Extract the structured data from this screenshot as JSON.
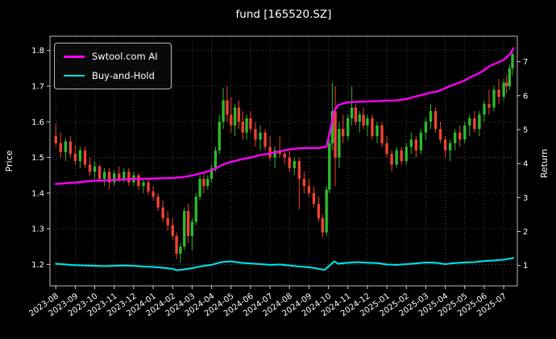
{
  "window": {
    "background": "#000000"
  },
  "chart_data": {
    "type": "candlestick_with_lines",
    "title": "fund [165520.SZ]",
    "legend_position": "upper-left",
    "grid": {
      "style": "dotted",
      "color": "#5a5a5a"
    },
    "left_axis": {
      "label": "Price",
      "ticks": [
        1.2,
        1.3,
        1.4,
        1.5,
        1.6,
        1.7,
        1.8
      ],
      "range": [
        1.14,
        1.84
      ]
    },
    "right_axis": {
      "label": "Return",
      "ticks": [
        1,
        2,
        3,
        4,
        5,
        6,
        7
      ],
      "range": [
        0.4,
        7.75
      ]
    },
    "x_axis": {
      "unit": "months since 2023-08",
      "range": [
        -0.3,
        23.7
      ],
      "tick_labels": [
        "2023-08",
        "2023-09",
        "2023-10",
        "2023-11",
        "2023-12",
        "2024-01",
        "2024-02",
        "2024-03",
        "2024-04",
        "2024-05",
        "2024-06",
        "2024-07",
        "2024-08",
        "2024-09",
        "2024-10",
        "2024-11",
        "2024-12",
        "2025-01",
        "2025-02",
        "2025-03",
        "2025-04",
        "2025-05",
        "2025-06",
        "2025-07"
      ]
    },
    "candles": {
      "up_color": "#2db92d",
      "down_color": "#ef4430",
      "ohlc": [
        [
          0.0,
          1.56,
          1.595,
          1.53,
          1.54
        ],
        [
          0.25,
          1.54,
          1.57,
          1.5,
          1.515
        ],
        [
          0.5,
          1.515,
          1.555,
          1.49,
          1.545
        ],
        [
          0.75,
          1.545,
          1.56,
          1.5,
          1.51
        ],
        [
          1.0,
          1.51,
          1.535,
          1.48,
          1.49
        ],
        [
          1.25,
          1.49,
          1.53,
          1.47,
          1.52
        ],
        [
          1.5,
          1.52,
          1.53,
          1.47,
          1.48
        ],
        [
          1.75,
          1.48,
          1.5,
          1.45,
          1.46
        ],
        [
          2.0,
          1.46,
          1.49,
          1.44,
          1.475
        ],
        [
          2.25,
          1.475,
          1.48,
          1.43,
          1.44
        ],
        [
          2.5,
          1.44,
          1.47,
          1.42,
          1.46
        ],
        [
          2.75,
          1.46,
          1.47,
          1.41,
          1.43
        ],
        [
          3.0,
          1.43,
          1.465,
          1.42,
          1.455
        ],
        [
          3.25,
          1.455,
          1.475,
          1.43,
          1.44
        ],
        [
          3.5,
          1.44,
          1.47,
          1.43,
          1.46
        ],
        [
          3.75,
          1.46,
          1.47,
          1.42,
          1.43
        ],
        [
          4.0,
          1.43,
          1.46,
          1.42,
          1.45
        ],
        [
          4.25,
          1.45,
          1.455,
          1.41,
          1.42
        ],
        [
          4.5,
          1.42,
          1.44,
          1.4,
          1.43
        ],
        [
          4.75,
          1.43,
          1.44,
          1.395,
          1.405
        ],
        [
          5.0,
          1.405,
          1.42,
          1.38,
          1.39
        ],
        [
          5.25,
          1.39,
          1.4,
          1.35,
          1.36
        ],
        [
          5.5,
          1.36,
          1.38,
          1.32,
          1.33
        ],
        [
          5.75,
          1.33,
          1.35,
          1.295,
          1.31
        ],
        [
          6.0,
          1.31,
          1.33,
          1.27,
          1.28
        ],
        [
          6.2,
          1.28,
          1.29,
          1.215,
          1.23
        ],
        [
          6.4,
          1.23,
          1.26,
          1.205,
          1.25
        ],
        [
          6.6,
          1.25,
          1.36,
          1.24,
          1.35
        ],
        [
          6.8,
          1.35,
          1.37,
          1.26,
          1.28
        ],
        [
          7.0,
          1.28,
          1.33,
          1.24,
          1.32
        ],
        [
          7.2,
          1.32,
          1.4,
          1.31,
          1.39
        ],
        [
          7.4,
          1.39,
          1.45,
          1.38,
          1.44
        ],
        [
          7.6,
          1.44,
          1.46,
          1.4,
          1.42
        ],
        [
          7.8,
          1.42,
          1.45,
          1.41,
          1.44
        ],
        [
          8.0,
          1.44,
          1.48,
          1.43,
          1.47
        ],
        [
          8.2,
          1.47,
          1.53,
          1.46,
          1.52
        ],
        [
          8.4,
          1.52,
          1.62,
          1.51,
          1.6
        ],
        [
          8.6,
          1.6,
          1.695,
          1.58,
          1.66
        ],
        [
          8.8,
          1.66,
          1.7,
          1.6,
          1.62
        ],
        [
          9.0,
          1.62,
          1.67,
          1.57,
          1.59
        ],
        [
          9.2,
          1.59,
          1.65,
          1.56,
          1.64
        ],
        [
          9.4,
          1.64,
          1.66,
          1.58,
          1.6
        ],
        [
          9.6,
          1.6,
          1.63,
          1.55,
          1.57
        ],
        [
          9.8,
          1.57,
          1.62,
          1.55,
          1.61
        ],
        [
          10.0,
          1.61,
          1.63,
          1.57,
          1.58
        ],
        [
          10.25,
          1.58,
          1.6,
          1.53,
          1.55
        ],
        [
          10.5,
          1.55,
          1.59,
          1.52,
          1.57
        ],
        [
          10.75,
          1.57,
          1.58,
          1.52,
          1.53
        ],
        [
          11.0,
          1.53,
          1.56,
          1.49,
          1.5
        ],
        [
          11.25,
          1.5,
          1.53,
          1.47,
          1.52
        ],
        [
          11.5,
          1.52,
          1.56,
          1.5,
          1.51
        ],
        [
          11.75,
          1.51,
          1.52,
          1.48,
          1.5
        ],
        [
          12.0,
          1.5,
          1.52,
          1.46,
          1.47
        ],
        [
          12.25,
          1.47,
          1.5,
          1.45,
          1.49
        ],
        [
          12.5,
          1.49,
          1.5,
          1.355,
          1.44
        ],
        [
          12.75,
          1.44,
          1.46,
          1.4,
          1.42
        ],
        [
          13.0,
          1.42,
          1.44,
          1.39,
          1.4
        ],
        [
          13.25,
          1.4,
          1.42,
          1.36,
          1.37
        ],
        [
          13.5,
          1.37,
          1.39,
          1.32,
          1.33
        ],
        [
          13.7,
          1.33,
          1.34,
          1.275,
          1.29
        ],
        [
          13.9,
          1.29,
          1.42,
          1.28,
          1.41
        ],
        [
          14.05,
          1.41,
          1.55,
          1.4,
          1.54
        ],
        [
          14.2,
          1.54,
          1.71,
          1.52,
          1.63
        ],
        [
          14.35,
          1.63,
          1.7,
          1.42,
          1.5
        ],
        [
          14.55,
          1.5,
          1.6,
          1.47,
          1.58
        ],
        [
          14.75,
          1.58,
          1.62,
          1.54,
          1.56
        ],
        [
          15.0,
          1.56,
          1.62,
          1.55,
          1.61
        ],
        [
          15.2,
          1.61,
          1.7,
          1.59,
          1.64
        ],
        [
          15.4,
          1.64,
          1.65,
          1.59,
          1.6
        ],
        [
          15.6,
          1.6,
          1.63,
          1.57,
          1.62
        ],
        [
          15.8,
          1.62,
          1.64,
          1.58,
          1.59
        ],
        [
          16.0,
          1.59,
          1.62,
          1.56,
          1.61
        ],
        [
          16.25,
          1.61,
          1.62,
          1.55,
          1.56
        ],
        [
          16.5,
          1.56,
          1.6,
          1.54,
          1.59
        ],
        [
          16.75,
          1.59,
          1.6,
          1.53,
          1.54
        ],
        [
          17.0,
          1.54,
          1.56,
          1.5,
          1.51
        ],
        [
          17.25,
          1.51,
          1.52,
          1.46,
          1.48
        ],
        [
          17.5,
          1.48,
          1.53,
          1.47,
          1.52
        ],
        [
          17.75,
          1.52,
          1.53,
          1.48,
          1.49
        ],
        [
          18.0,
          1.49,
          1.54,
          1.48,
          1.53
        ],
        [
          18.25,
          1.53,
          1.57,
          1.51,
          1.55
        ],
        [
          18.5,
          1.55,
          1.56,
          1.5,
          1.52
        ],
        [
          18.75,
          1.52,
          1.58,
          1.51,
          1.57
        ],
        [
          19.0,
          1.57,
          1.61,
          1.55,
          1.6
        ],
        [
          19.25,
          1.6,
          1.65,
          1.58,
          1.63
        ],
        [
          19.5,
          1.63,
          1.64,
          1.57,
          1.58
        ],
        [
          19.75,
          1.58,
          1.6,
          1.54,
          1.55
        ],
        [
          20.0,
          1.55,
          1.56,
          1.5,
          1.52
        ],
        [
          20.25,
          1.52,
          1.55,
          1.49,
          1.54
        ],
        [
          20.5,
          1.54,
          1.58,
          1.52,
          1.57
        ],
        [
          20.75,
          1.57,
          1.59,
          1.53,
          1.55
        ],
        [
          21.0,
          1.55,
          1.6,
          1.54,
          1.59
        ],
        [
          21.25,
          1.59,
          1.62,
          1.56,
          1.61
        ],
        [
          21.5,
          1.61,
          1.63,
          1.57,
          1.58
        ],
        [
          21.75,
          1.58,
          1.63,
          1.56,
          1.62
        ],
        [
          22.0,
          1.62,
          1.66,
          1.6,
          1.65
        ],
        [
          22.25,
          1.65,
          1.69,
          1.62,
          1.64
        ],
        [
          22.5,
          1.64,
          1.7,
          1.63,
          1.69
        ],
        [
          22.75,
          1.69,
          1.72,
          1.65,
          1.67
        ],
        [
          23.0,
          1.67,
          1.72,
          1.66,
          1.71
        ],
        [
          23.15,
          1.71,
          1.73,
          1.68,
          1.7
        ],
        [
          23.3,
          1.7,
          1.76,
          1.69,
          1.75
        ],
        [
          23.45,
          1.75,
          1.8,
          1.73,
          1.79
        ]
      ]
    },
    "series": [
      {
        "name": "Swtool.com AI",
        "color": "#ff00ff",
        "axis": "right",
        "points": [
          [
            0,
            3.4
          ],
          [
            0.5,
            3.42
          ],
          [
            1,
            3.44
          ],
          [
            1.5,
            3.47
          ],
          [
            2,
            3.5
          ],
          [
            2.5,
            3.5
          ],
          [
            3,
            3.52
          ],
          [
            3.5,
            3.53
          ],
          [
            4,
            3.55
          ],
          [
            4.5,
            3.55
          ],
          [
            5,
            3.56
          ],
          [
            5.5,
            3.57
          ],
          [
            6,
            3.58
          ],
          [
            6.5,
            3.6
          ],
          [
            7,
            3.65
          ],
          [
            7.5,
            3.72
          ],
          [
            8,
            3.8
          ],
          [
            8.3,
            3.88
          ],
          [
            8.6,
            3.98
          ],
          [
            9,
            4.05
          ],
          [
            9.5,
            4.12
          ],
          [
            10,
            4.18
          ],
          [
            10.5,
            4.25
          ],
          [
            11,
            4.3
          ],
          [
            11.5,
            4.36
          ],
          [
            12,
            4.42
          ],
          [
            12.5,
            4.45
          ],
          [
            13,
            4.46
          ],
          [
            13.5,
            4.46
          ],
          [
            13.9,
            4.5
          ],
          [
            14.1,
            5.0
          ],
          [
            14.3,
            5.55
          ],
          [
            14.5,
            5.72
          ],
          [
            14.8,
            5.78
          ],
          [
            15,
            5.8
          ],
          [
            15.5,
            5.82
          ],
          [
            16,
            5.83
          ],
          [
            16.5,
            5.84
          ],
          [
            17,
            5.85
          ],
          [
            17.5,
            5.86
          ],
          [
            18,
            5.9
          ],
          [
            18.5,
            5.98
          ],
          [
            19,
            6.05
          ],
          [
            19.3,
            6.1
          ],
          [
            19.6,
            6.12
          ],
          [
            20,
            6.22
          ],
          [
            20.3,
            6.3
          ],
          [
            20.7,
            6.38
          ],
          [
            21,
            6.45
          ],
          [
            21.3,
            6.55
          ],
          [
            21.6,
            6.62
          ],
          [
            22,
            6.75
          ],
          [
            22.3,
            6.88
          ],
          [
            22.6,
            6.95
          ],
          [
            23,
            7.05
          ],
          [
            23.2,
            7.15
          ],
          [
            23.35,
            7.25
          ],
          [
            23.5,
            7.4
          ]
        ]
      },
      {
        "name": "Buy-and-Hold",
        "color": "#00e0e8",
        "axis": "right",
        "points": [
          [
            0,
            1.05
          ],
          [
            0.5,
            1.03
          ],
          [
            1,
            1.01
          ],
          [
            1.5,
            1.0
          ],
          [
            2,
            0.99
          ],
          [
            2.5,
            0.98
          ],
          [
            3,
            0.99
          ],
          [
            3.5,
            1.0
          ],
          [
            4,
            0.99
          ],
          [
            4.5,
            0.97
          ],
          [
            5,
            0.96
          ],
          [
            5.5,
            0.93
          ],
          [
            6,
            0.9
          ],
          [
            6.2,
            0.86
          ],
          [
            6.5,
            0.88
          ],
          [
            7,
            0.92
          ],
          [
            7.5,
            0.98
          ],
          [
            8,
            1.02
          ],
          [
            8.5,
            1.1
          ],
          [
            9,
            1.12
          ],
          [
            9.5,
            1.08
          ],
          [
            10,
            1.06
          ],
          [
            10.5,
            1.04
          ],
          [
            11,
            1.02
          ],
          [
            11.5,
            1.03
          ],
          [
            12,
            1.0
          ],
          [
            12.5,
            0.97
          ],
          [
            13,
            0.95
          ],
          [
            13.5,
            0.9
          ],
          [
            13.8,
            0.87
          ],
          [
            14.1,
            1.02
          ],
          [
            14.3,
            1.12
          ],
          [
            14.5,
            1.05
          ],
          [
            15,
            1.08
          ],
          [
            15.5,
            1.1
          ],
          [
            16,
            1.08
          ],
          [
            16.5,
            1.07
          ],
          [
            17,
            1.03
          ],
          [
            17.5,
            1.02
          ],
          [
            18,
            1.04
          ],
          [
            18.5,
            1.06
          ],
          [
            19,
            1.09
          ],
          [
            19.5,
            1.08
          ],
          [
            20,
            1.04
          ],
          [
            20.5,
            1.07
          ],
          [
            21,
            1.09
          ],
          [
            21.5,
            1.1
          ],
          [
            22,
            1.13
          ],
          [
            22.5,
            1.15
          ],
          [
            23,
            1.17
          ],
          [
            23.5,
            1.22
          ]
        ]
      }
    ]
  }
}
